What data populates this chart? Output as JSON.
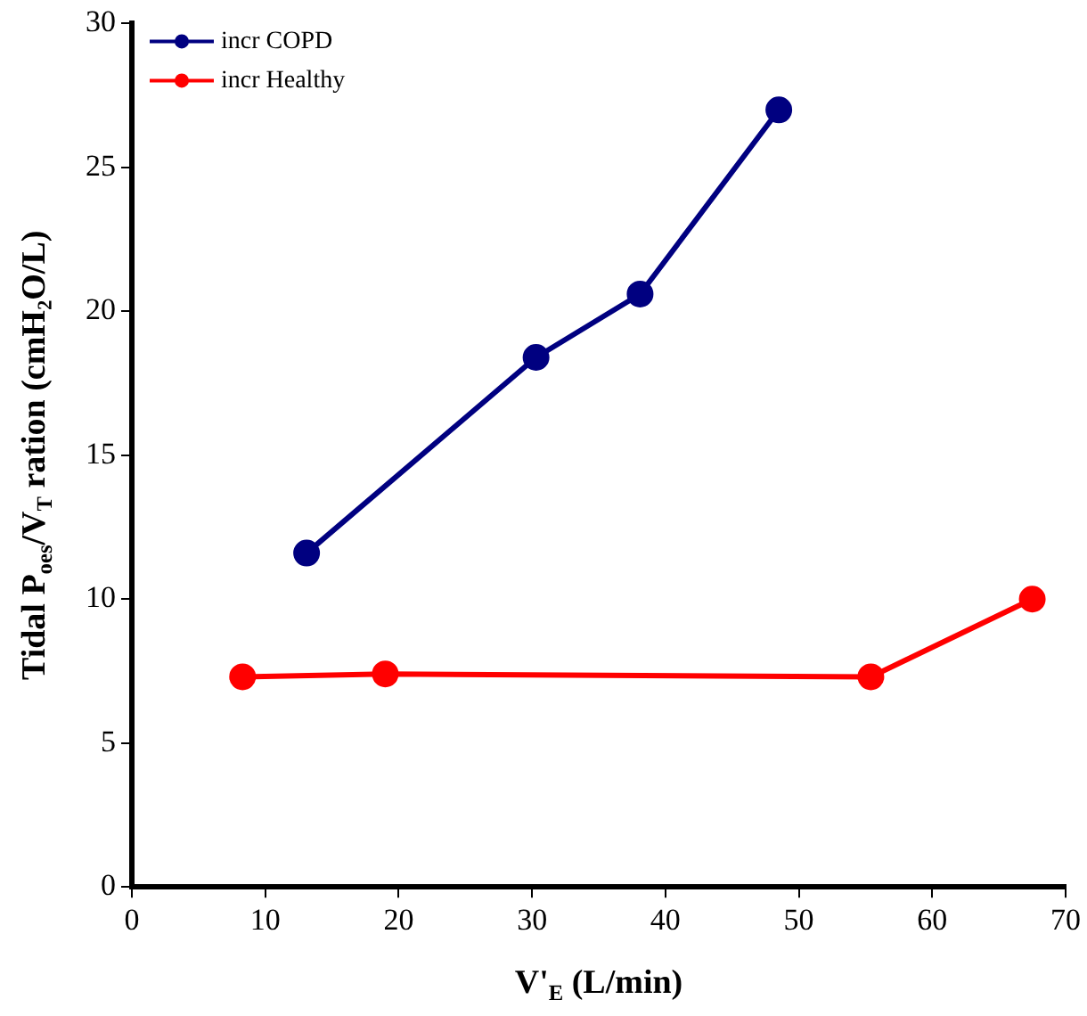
{
  "chart_data": {
    "type": "line",
    "xlabel": "V'$_{E}$ (L/min)",
    "ylabel": "Tidal P$_{oes}$/V$_{T}$ ration (cmH₂O/L)",
    "series": [
      {
        "name": "incr COPD",
        "color": "#000080",
        "x": [
          13.1,
          30.3,
          38.1,
          48.5
        ],
        "values": [
          11.6,
          18.4,
          20.6,
          27.0
        ]
      },
      {
        "name": "incr Healthy",
        "color": "#ff0000",
        "x": [
          8.3,
          19.0,
          55.4,
          67.5
        ],
        "values": [
          7.3,
          7.4,
          7.3,
          10.0
        ]
      }
    ],
    "xlim": [
      0,
      70
    ],
    "xticks": [
      0,
      10,
      20,
      30,
      40,
      50,
      60,
      70
    ],
    "ylim": [
      0,
      30
    ],
    "yticks": [
      0,
      5,
      10,
      15,
      20,
      25,
      30
    ],
    "grid": false,
    "legend": "top left",
    "marker": "circle",
    "line_style": "solid"
  }
}
